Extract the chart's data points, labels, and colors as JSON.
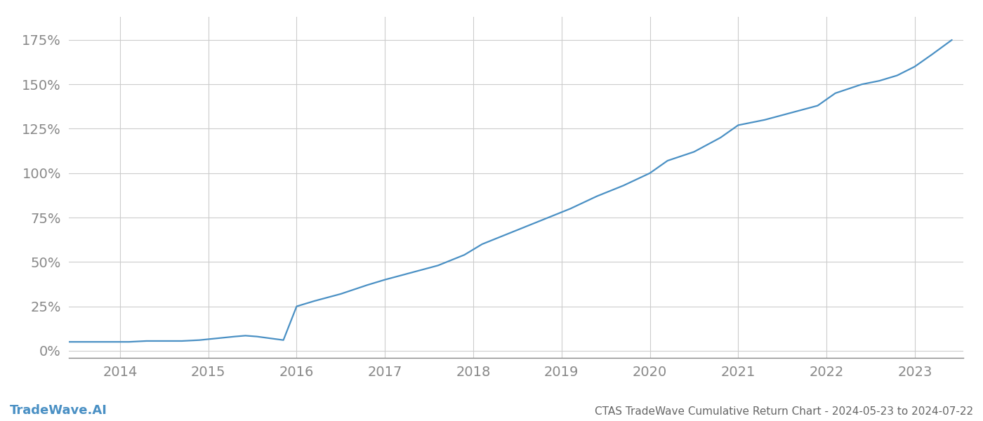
{
  "title": "CTAS TradeWave Cumulative Return Chart - 2024-05-23 to 2024-07-22",
  "watermark": "TradeWave.AI",
  "line_color": "#4a90c4",
  "background_color": "#ffffff",
  "grid_color": "#cccccc",
  "axis_color": "#888888",
  "x_years": [
    2014,
    2015,
    2016,
    2017,
    2018,
    2019,
    2020,
    2021,
    2022,
    2023
  ],
  "x_data": [
    2013.42,
    2013.6,
    2013.9,
    2014.1,
    2014.3,
    2014.5,
    2014.7,
    2014.9,
    2015.1,
    2015.3,
    2015.42,
    2015.55,
    2015.7,
    2015.85,
    2016.0,
    2016.2,
    2016.5,
    2016.8,
    2017.0,
    2017.3,
    2017.6,
    2017.9,
    2018.1,
    2018.3,
    2018.6,
    2018.9,
    2019.1,
    2019.4,
    2019.7,
    2020.0,
    2020.2,
    2020.5,
    2020.8,
    2021.0,
    2021.3,
    2021.6,
    2021.9,
    2022.1,
    2022.4,
    2022.6,
    2022.8,
    2023.0,
    2023.2,
    2023.42
  ],
  "y_data": [
    0.05,
    0.05,
    0.05,
    0.05,
    0.055,
    0.055,
    0.055,
    0.06,
    0.07,
    0.08,
    0.085,
    0.08,
    0.07,
    0.06,
    0.25,
    0.28,
    0.32,
    0.37,
    0.4,
    0.44,
    0.48,
    0.54,
    0.6,
    0.64,
    0.7,
    0.76,
    0.8,
    0.87,
    0.93,
    1.0,
    1.07,
    1.12,
    1.2,
    1.27,
    1.3,
    1.34,
    1.38,
    1.45,
    1.5,
    1.52,
    1.55,
    1.6,
    1.67,
    1.75
  ],
  "yticks": [
    0.0,
    0.25,
    0.5,
    0.75,
    1.0,
    1.25,
    1.5,
    1.75
  ],
  "ytick_labels": [
    "0%",
    "25%",
    "50%",
    "75%",
    "100%",
    "125%",
    "150%",
    "175%"
  ],
  "xlim": [
    2013.42,
    2023.55
  ],
  "ylim": [
    -0.04,
    1.88
  ],
  "line_width": 1.6,
  "title_fontsize": 11,
  "watermark_fontsize": 13,
  "tick_fontsize": 14,
  "tick_color": "#888888",
  "title_color": "#666666"
}
